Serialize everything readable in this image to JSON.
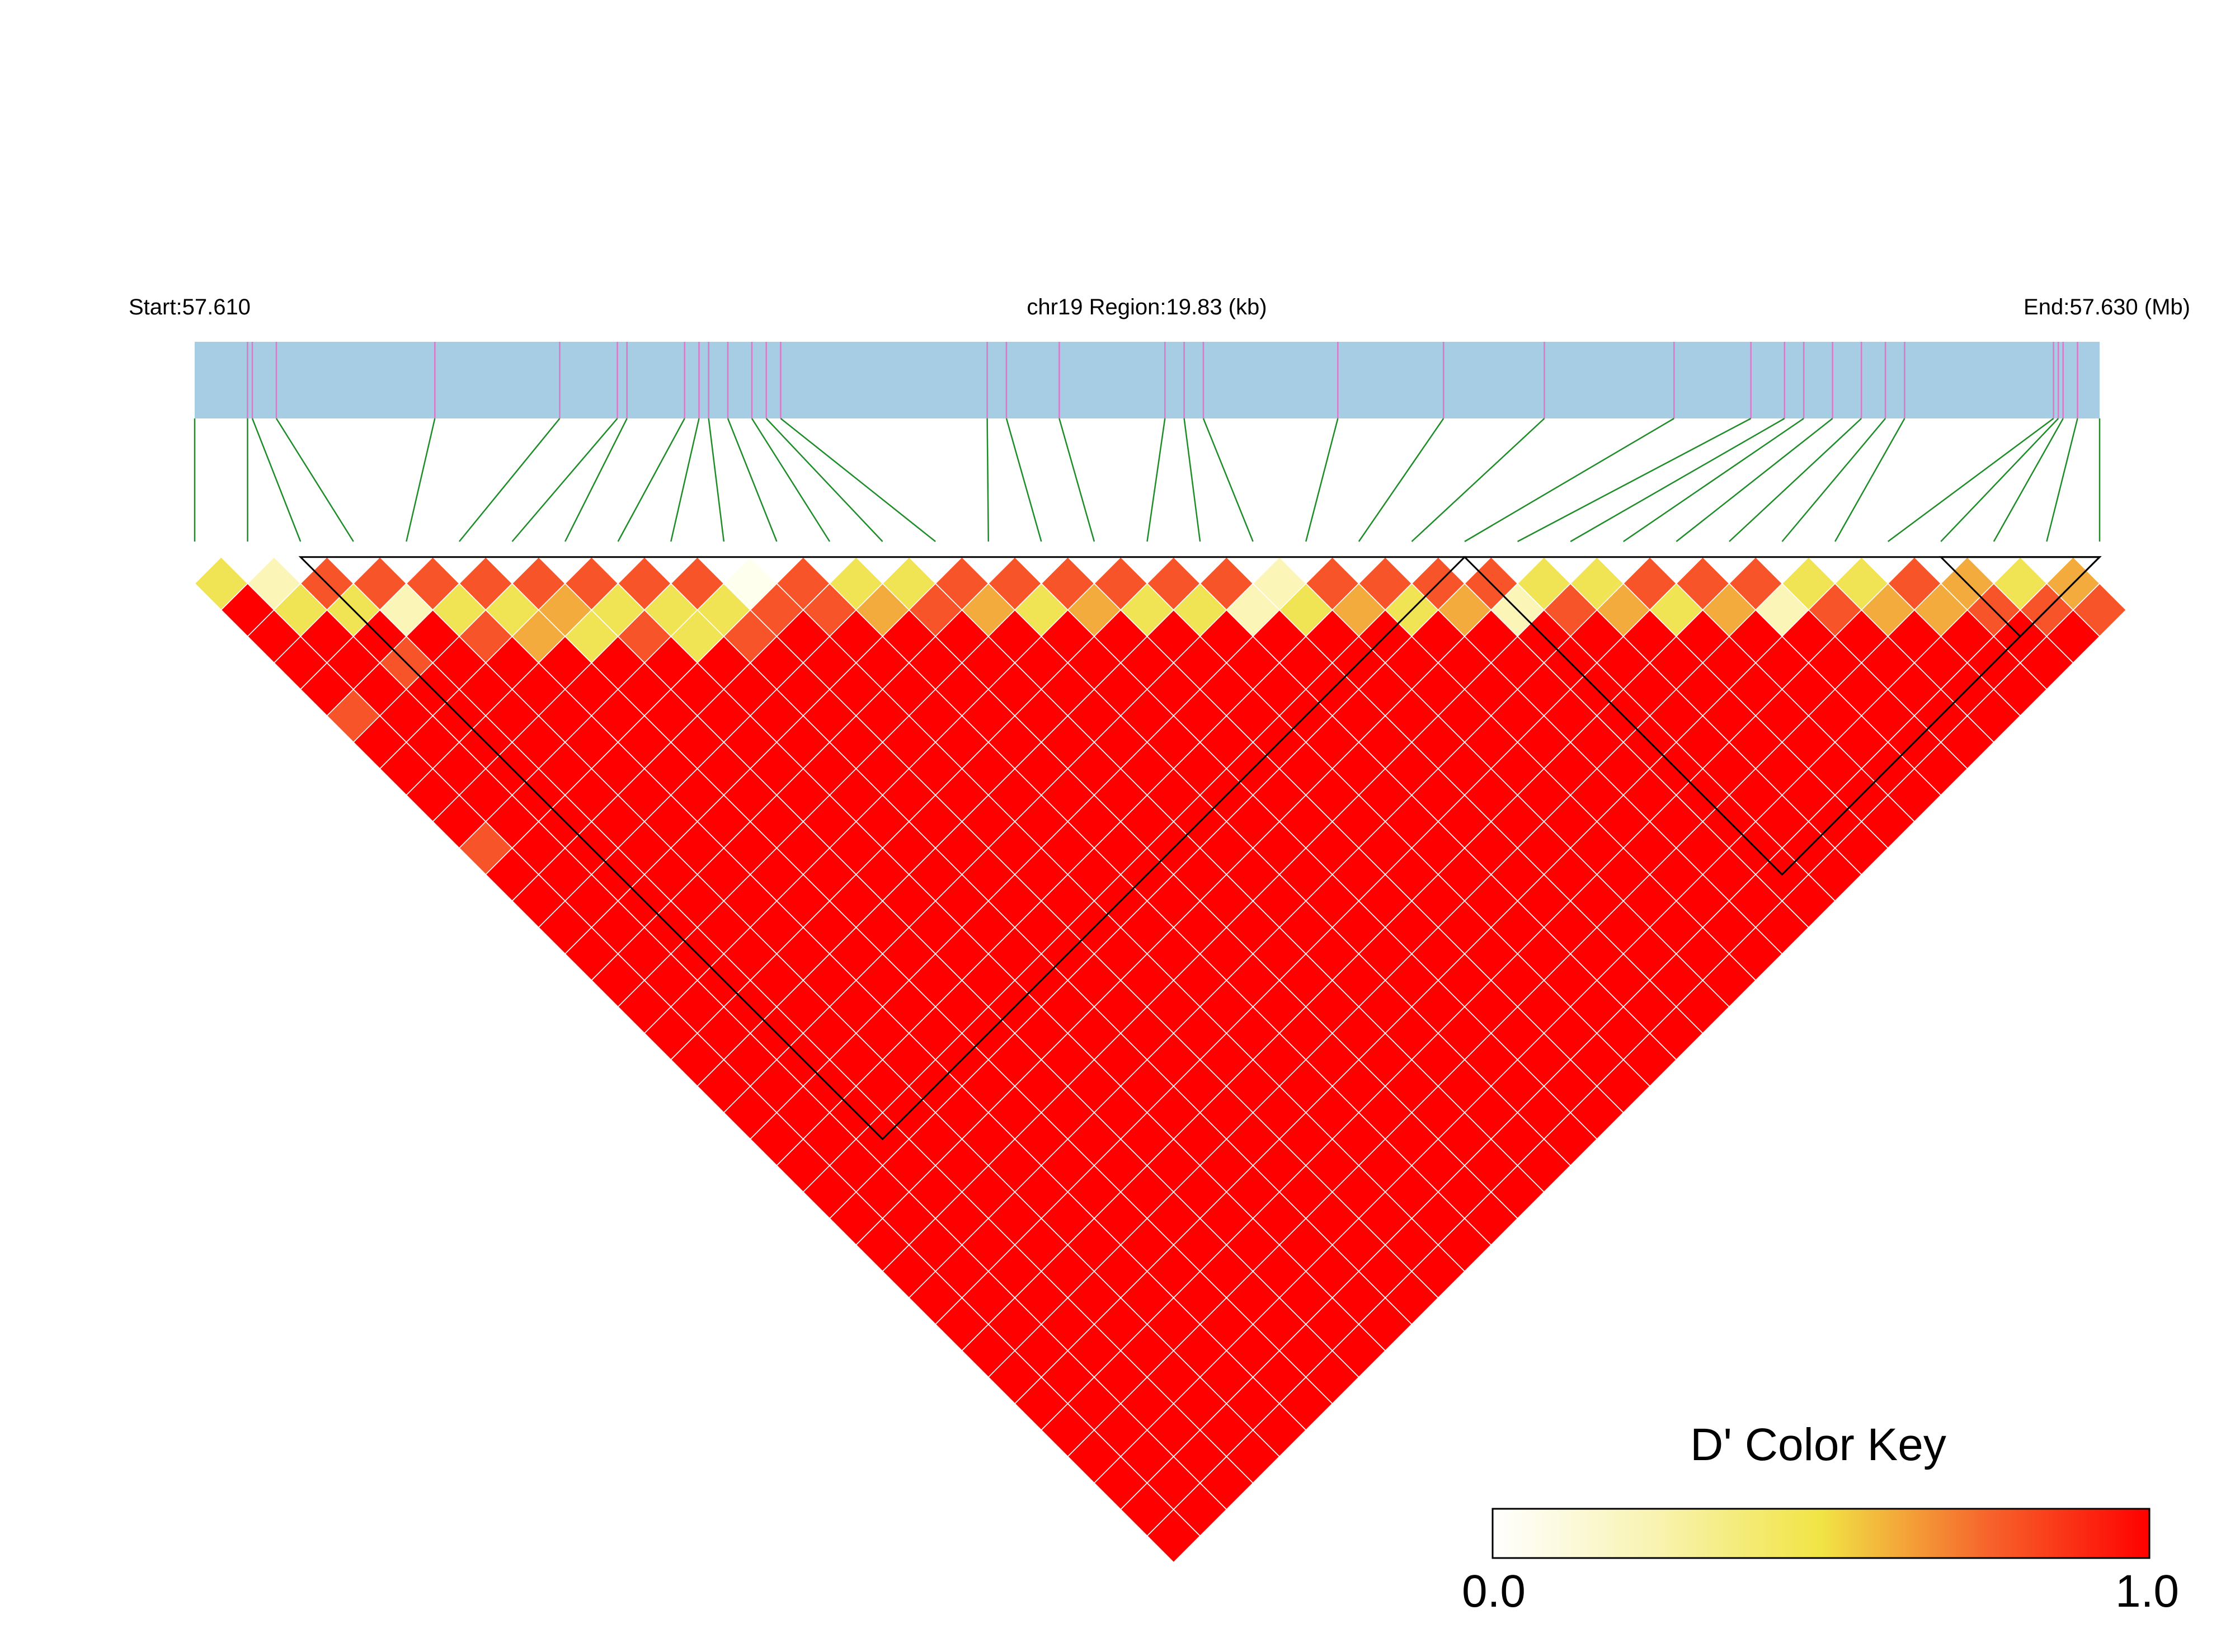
{
  "chart_data": {
    "type": "heatmap",
    "region": {
      "start_label": "Start:57.610",
      "title": "chr19 Region:19.83 (kb)",
      "end_label": "End:57.630 (Mb)",
      "start_mb": 57.61,
      "end_mb": 57.63
    },
    "snp_positions_kb": [
      0,
      0.55,
      0.6,
      0.85,
      2.5,
      3.8,
      4.4,
      4.5,
      5.1,
      5.25,
      5.35,
      5.55,
      5.8,
      5.95,
      6.1,
      8.25,
      8.45,
      9.0,
      10.1,
      10.3,
      10.5,
      11.9,
      13.0,
      14.05,
      15.4,
      16.2,
      16.55,
      16.75,
      17.05,
      17.35,
      17.6,
      17.8,
      19.35,
      19.4,
      19.45,
      19.6,
      19.83
    ],
    "d_prime_palette": [
      "#ffffee",
      "#fbf5b8",
      "#f1e454",
      "#f2ab3c",
      "#f7542a",
      "#ff0000"
    ],
    "d_prime_matrix": [
      [
        0.6,
        1,
        1,
        1,
        1,
        0.92,
        1,
        1,
        1,
        1,
        0.8,
        1,
        1,
        1,
        1,
        1,
        1,
        1,
        1,
        1,
        1,
        1,
        1,
        1,
        1,
        1,
        1,
        1,
        1,
        1,
        1,
        1,
        1,
        1,
        1,
        1,
        1
      ],
      [
        1,
        0.2,
        0.55,
        1,
        1,
        1,
        1,
        1,
        1,
        1,
        1,
        1,
        1,
        1,
        1,
        1,
        1,
        1,
        1,
        1,
        1,
        1,
        1,
        1,
        1,
        1,
        1,
        1,
        1,
        1,
        1,
        1,
        1,
        1,
        1,
        1,
        1
      ],
      [
        1,
        0.55,
        0.92,
        0.55,
        1,
        0.85,
        1,
        1,
        1,
        1,
        1,
        1,
        1,
        1,
        1,
        1,
        1,
        1,
        1,
        1,
        1,
        1,
        1,
        1,
        1,
        1,
        1,
        1,
        1,
        1,
        1,
        1,
        1,
        1,
        1,
        1,
        1
      ],
      [
        1,
        1,
        0.55,
        0.92,
        0.3,
        1,
        1,
        1,
        1,
        1,
        1,
        1,
        1,
        1,
        1,
        1,
        1,
        1,
        1,
        1,
        1,
        1,
        1,
        1,
        1,
        1,
        1,
        1,
        1,
        1,
        1,
        1,
        1,
        1,
        1,
        1,
        1
      ],
      [
        1,
        1,
        0.85,
        0.3,
        0.85,
        0.6,
        0.85,
        1,
        1,
        1,
        1,
        1,
        1,
        1,
        1,
        1,
        1,
        1,
        1,
        1,
        1,
        1,
        1,
        1,
        1,
        1,
        1,
        1,
        1,
        1,
        1,
        1,
        1,
        1,
        1,
        1,
        1
      ],
      [
        0.92,
        1,
        1,
        1,
        0.6,
        0.95,
        0.55,
        0.75,
        1,
        1,
        1,
        1,
        1,
        1,
        1,
        1,
        1,
        1,
        1,
        1,
        1,
        1,
        1,
        1,
        1,
        1,
        1,
        1,
        1,
        1,
        1,
        1,
        1,
        1,
        1,
        1,
        1
      ],
      [
        1,
        1,
        1,
        1,
        0.85,
        0.55,
        0.85,
        0.75,
        0.6,
        1,
        1,
        1,
        1,
        1,
        1,
        1,
        1,
        1,
        1,
        1,
        1,
        1,
        1,
        1,
        1,
        1,
        1,
        1,
        1,
        1,
        1,
        1,
        1,
        1,
        1,
        1,
        1
      ],
      [
        1,
        1,
        1,
        1,
        1,
        0.75,
        0.75,
        0.85,
        0.6,
        0.85,
        1,
        1,
        1,
        1,
        1,
        1,
        1,
        1,
        1,
        1,
        1,
        1,
        1,
        1,
        1,
        1,
        1,
        1,
        1,
        1,
        1,
        1,
        1,
        1,
        1,
        1,
        1
      ],
      [
        1,
        1,
        1,
        1,
        1,
        1,
        0.6,
        0.6,
        0.85,
        0.55,
        0.6,
        1,
        1,
        1,
        1,
        1,
        1,
        1,
        1,
        1,
        1,
        1,
        1,
        1,
        1,
        1,
        1,
        1,
        1,
        1,
        1,
        1,
        1,
        1,
        1,
        1,
        1
      ],
      [
        1,
        1,
        1,
        1,
        1,
        1,
        1,
        0.85,
        0.55,
        0.95,
        0.55,
        0.85,
        1,
        1,
        1,
        1,
        1,
        1,
        1,
        1,
        1,
        1,
        1,
        1,
        1,
        1,
        1,
        1,
        1,
        1,
        1,
        1,
        1,
        1,
        1,
        1,
        1
      ],
      [
        0.8,
        1,
        1,
        1,
        1,
        1,
        1,
        1,
        0.6,
        0.55,
        0.05,
        0.9,
        1,
        1,
        1,
        1,
        1,
        1,
        1,
        1,
        1,
        1,
        1,
        1,
        1,
        1,
        1,
        1,
        1,
        1,
        1,
        1,
        1,
        1,
        1,
        1,
        1
      ],
      [
        1,
        1,
        1,
        1,
        1,
        1,
        1,
        1,
        1,
        0.85,
        0.9,
        0.85,
        0.85,
        1,
        1,
        1,
        1,
        1,
        1,
        1,
        1,
        1,
        1,
        1,
        1,
        1,
        1,
        1,
        1,
        1,
        1,
        1,
        1,
        1,
        1,
        1,
        1
      ],
      [
        1,
        1,
        1,
        1,
        1,
        1,
        1,
        1,
        1,
        1,
        1,
        0.85,
        0.6,
        0.75,
        1,
        1,
        1,
        1,
        1,
        1,
        1,
        1,
        1,
        1,
        1,
        1,
        1,
        1,
        1,
        1,
        1,
        1,
        1,
        1,
        1,
        1,
        1
      ],
      [
        1,
        1,
        1,
        1,
        1,
        1,
        1,
        1,
        1,
        1,
        1,
        1,
        0.75,
        0.6,
        0.8,
        1,
        1,
        1,
        1,
        1,
        1,
        1,
        1,
        1,
        1,
        1,
        1,
        1,
        1,
        1,
        1,
        1,
        1,
        1,
        1,
        1,
        1
      ],
      [
        1,
        1,
        1,
        1,
        1,
        1,
        1,
        1,
        1,
        1,
        1,
        1,
        1,
        0.8,
        0.85,
        0.75,
        1,
        1,
        1,
        1,
        1,
        1,
        1,
        1,
        1,
        1,
        1,
        1,
        1,
        1,
        1,
        1,
        1,
        1,
        1,
        1,
        1
      ],
      [
        1,
        1,
        1,
        1,
        1,
        1,
        1,
        1,
        1,
        1,
        1,
        1,
        1,
        1,
        0.75,
        0.85,
        0.6,
        1,
        1,
        1,
        1,
        1,
        1,
        1,
        1,
        1,
        1,
        1,
        1,
        1,
        1,
        1,
        1,
        1,
        1,
        1,
        1
      ],
      [
        1,
        1,
        1,
        1,
        1,
        1,
        1,
        1,
        1,
        1,
        1,
        1,
        1,
        1,
        1,
        0.6,
        0.85,
        0.75,
        1,
        1,
        1,
        1,
        1,
        1,
        1,
        1,
        1,
        1,
        1,
        1,
        1,
        1,
        1,
        1,
        1,
        1,
        1
      ],
      [
        1,
        1,
        1,
        1,
        1,
        1,
        1,
        1,
        1,
        1,
        1,
        1,
        1,
        1,
        1,
        1,
        0.75,
        0.85,
        0.55,
        1,
        1,
        1,
        1,
        1,
        1,
        1,
        1,
        1,
        1,
        1,
        1,
        1,
        1,
        1,
        1,
        1,
        1
      ],
      [
        1,
        1,
        1,
        1,
        1,
        1,
        1,
        1,
        1,
        1,
        1,
        1,
        1,
        1,
        1,
        1,
        1,
        0.55,
        0.85,
        0.6,
        1,
        1,
        1,
        1,
        1,
        1,
        1,
        1,
        1,
        1,
        1,
        1,
        1,
        1,
        1,
        1,
        1
      ],
      [
        1,
        1,
        1,
        1,
        1,
        1,
        1,
        1,
        1,
        1,
        1,
        1,
        1,
        1,
        1,
        1,
        1,
        1,
        0.6,
        0.85,
        0.25,
        1,
        1,
        1,
        1,
        1,
        1,
        1,
        1,
        1,
        1,
        1,
        1,
        1,
        1,
        1,
        1
      ],
      [
        1,
        1,
        1,
        1,
        1,
        1,
        1,
        1,
        1,
        1,
        1,
        1,
        1,
        1,
        1,
        1,
        1,
        1,
        1,
        0.25,
        0.4,
        0.6,
        1,
        1,
        1,
        1,
        1,
        1,
        1,
        1,
        1,
        1,
        1,
        1,
        1,
        1,
        1
      ],
      [
        1,
        1,
        1,
        1,
        1,
        1,
        1,
        1,
        1,
        1,
        1,
        1,
        1,
        1,
        1,
        1,
        1,
        1,
        1,
        1,
        0.6,
        0.85,
        0.75,
        1,
        1,
        1,
        1,
        1,
        1,
        1,
        1,
        1,
        1,
        1,
        1,
        1,
        1
      ],
      [
        1,
        1,
        1,
        1,
        1,
        1,
        1,
        1,
        1,
        1,
        1,
        1,
        1,
        1,
        1,
        1,
        1,
        1,
        1,
        1,
        1,
        0.75,
        0.85,
        0.6,
        1,
        1,
        1,
        1,
        1,
        1,
        1,
        1,
        1,
        1,
        1,
        1,
        1
      ],
      [
        1,
        1,
        1,
        1,
        1,
        1,
        1,
        1,
        1,
        1,
        1,
        1,
        1,
        1,
        1,
        1,
        1,
        1,
        1,
        1,
        1,
        1,
        0.6,
        0.85,
        0.75,
        1,
        1,
        1,
        1,
        1,
        1,
        1,
        1,
        1,
        1,
        1,
        1
      ],
      [
        1,
        1,
        1,
        1,
        1,
        1,
        1,
        1,
        1,
        1,
        1,
        1,
        1,
        1,
        1,
        1,
        1,
        1,
        1,
        1,
        1,
        1,
        1,
        0.75,
        0.85,
        0.3,
        1,
        1,
        1,
        1,
        1,
        1,
        1,
        1,
        1,
        1,
        1
      ],
      [
        1,
        1,
        1,
        1,
        1,
        1,
        1,
        1,
        1,
        1,
        1,
        1,
        1,
        1,
        1,
        1,
        1,
        1,
        1,
        1,
        1,
        1,
        1,
        1,
        0.3,
        0.6,
        0.85,
        1,
        1,
        1,
        1,
        1,
        1,
        1,
        1,
        1,
        1
      ],
      [
        1,
        1,
        1,
        1,
        1,
        1,
        1,
        1,
        1,
        1,
        1,
        1,
        1,
        1,
        1,
        1,
        1,
        1,
        1,
        1,
        1,
        1,
        1,
        1,
        1,
        0.85,
        0.6,
        0.75,
        1,
        1,
        1,
        1,
        1,
        1,
        1,
        1,
        1
      ],
      [
        1,
        1,
        1,
        1,
        1,
        1,
        1,
        1,
        1,
        1,
        1,
        1,
        1,
        1,
        1,
        1,
        1,
        1,
        1,
        1,
        1,
        1,
        1,
        1,
        1,
        1,
        0.75,
        0.85,
        0.6,
        1,
        1,
        1,
        1,
        1,
        1,
        1,
        1
      ],
      [
        1,
        1,
        1,
        1,
        1,
        1,
        1,
        1,
        1,
        1,
        1,
        1,
        1,
        1,
        1,
        1,
        1,
        1,
        1,
        1,
        1,
        1,
        1,
        1,
        1,
        1,
        1,
        0.6,
        0.85,
        0.75,
        1,
        1,
        1,
        1,
        1,
        1,
        1
      ],
      [
        1,
        1,
        1,
        1,
        1,
        1,
        1,
        1,
        1,
        1,
        1,
        1,
        1,
        1,
        1,
        1,
        1,
        1,
        1,
        1,
        1,
        1,
        1,
        1,
        1,
        1,
        1,
        1,
        0.75,
        0.85,
        0.3,
        1,
        1,
        1,
        1,
        1,
        1
      ],
      [
        1,
        1,
        1,
        1,
        1,
        1,
        1,
        1,
        1,
        1,
        1,
        1,
        1,
        1,
        1,
        1,
        1,
        1,
        1,
        1,
        1,
        1,
        1,
        1,
        1,
        1,
        1,
        1,
        1,
        0.3,
        0.6,
        0.85,
        1,
        1,
        1,
        1,
        1
      ],
      [
        1,
        1,
        1,
        1,
        1,
        1,
        1,
        1,
        1,
        1,
        1,
        1,
        1,
        1,
        1,
        1,
        1,
        1,
        1,
        1,
        1,
        1,
        1,
        1,
        1,
        1,
        1,
        1,
        1,
        1,
        0.85,
        0.6,
        0.75,
        1,
        1,
        1,
        1
      ],
      [
        1,
        1,
        1,
        1,
        1,
        1,
        1,
        1,
        1,
        1,
        1,
        1,
        1,
        1,
        1,
        1,
        1,
        1,
        1,
        1,
        1,
        1,
        1,
        1,
        1,
        1,
        1,
        1,
        1,
        1,
        1,
        0.75,
        0.85,
        0.75,
        1,
        1,
        1
      ],
      [
        1,
        1,
        1,
        1,
        1,
        1,
        1,
        1,
        1,
        1,
        1,
        1,
        1,
        1,
        1,
        1,
        1,
        1,
        1,
        1,
        1,
        1,
        1,
        1,
        1,
        1,
        1,
        1,
        1,
        1,
        1,
        1,
        0.75,
        0.75,
        0.85,
        1,
        1
      ],
      [
        1,
        1,
        1,
        1,
        1,
        1,
        1,
        1,
        1,
        1,
        1,
        1,
        1,
        1,
        1,
        1,
        1,
        1,
        1,
        1,
        1,
        1,
        1,
        1,
        1,
        1,
        1,
        1,
        1,
        1,
        1,
        1,
        1,
        0.85,
        0.6,
        0.85,
        1
      ],
      [
        1,
        1,
        1,
        1,
        1,
        1,
        1,
        1,
        1,
        1,
        1,
        1,
        1,
        1,
        1,
        1,
        1,
        1,
        1,
        1,
        1,
        1,
        1,
        1,
        1,
        1,
        1,
        1,
        1,
        1,
        1,
        1,
        1,
        1,
        0.85,
        0.75,
        0.85
      ],
      [
        1,
        1,
        1,
        1,
        1,
        1,
        1,
        1,
        1,
        1,
        1,
        1,
        1,
        1,
        1,
        1,
        1,
        1,
        1,
        1,
        1,
        1,
        1,
        1,
        1,
        1,
        1,
        1,
        1,
        1,
        1,
        1,
        1,
        1,
        1,
        0.85,
        0.75
      ]
    ],
    "blocks": [
      [
        2,
        24
      ],
      [
        24,
        36
      ],
      [
        33,
        36
      ]
    ],
    "legend": {
      "title": "D' Color Key",
      "min_label": "0.0",
      "max_label": "1.0",
      "min": 0.0,
      "max": 1.0
    }
  }
}
